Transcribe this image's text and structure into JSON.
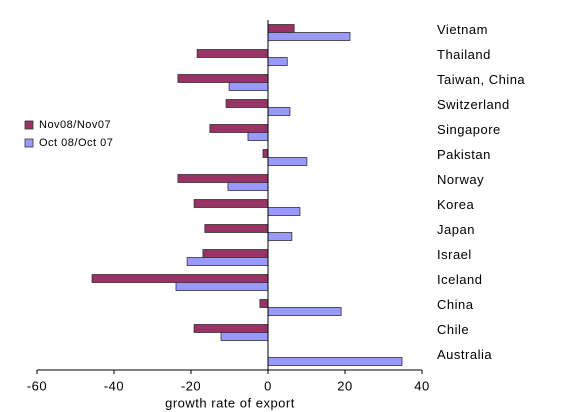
{
  "chart_data": {
    "type": "hbar",
    "categories": [
      "Vietnam",
      "Thailand",
      "Taiwan, China",
      "Switzerland",
      "Singapore",
      "Pakistan",
      "Norway",
      "Korea",
      "Japan",
      "Israel",
      "Iceland",
      "China",
      "Chile",
      "Australia"
    ],
    "series": [
      {
        "name": "Nov08/Nov07",
        "color": "#993366",
        "values": [
          6.8,
          -18.4,
          -23.4,
          -10.9,
          -15.1,
          -1.3,
          -23.4,
          -19.2,
          -16.4,
          -16.9,
          -45.7,
          -2.1,
          -19.2,
          null
        ]
      },
      {
        "name": "Oct 08/Oct 07",
        "color": "#9999ff",
        "values": [
          21.3,
          5.0,
          -10.1,
          5.7,
          -5.2,
          10.1,
          -10.4,
          8.3,
          6.2,
          -21.0,
          -23.9,
          19.0,
          -12.2,
          34.8
        ]
      }
    ],
    "xlim": [
      -60,
      40
    ],
    "xticks": [
      -60,
      -40,
      -20,
      0,
      20,
      40
    ],
    "xlabel": "growth rate of export",
    "legend": "left"
  }
}
